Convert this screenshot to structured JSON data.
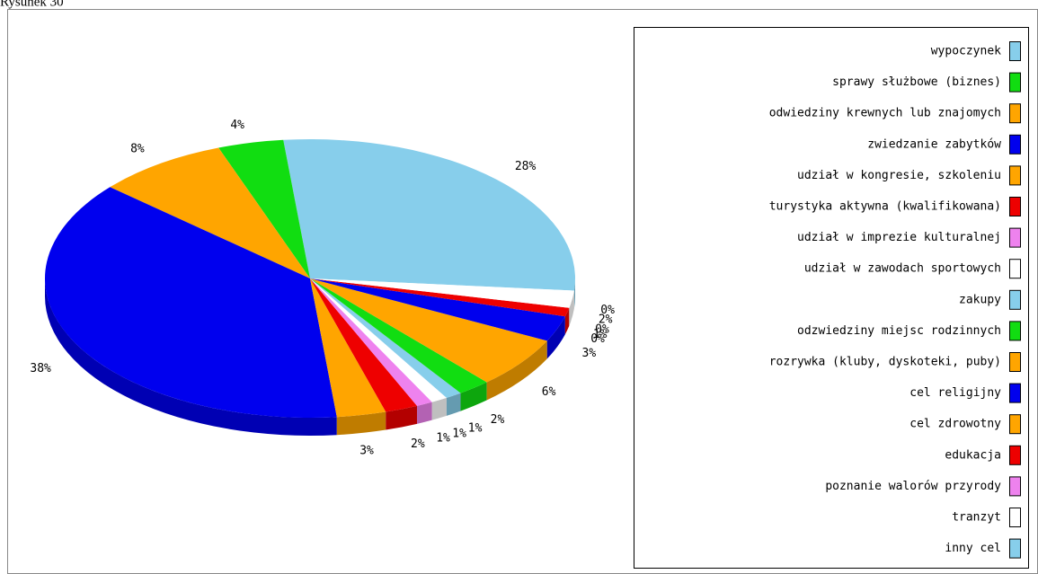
{
  "chart_data": {
    "type": "pie3d",
    "title": "Rysunek 30",
    "categories": [
      "wypoczynek",
      "sprawy służbowe (biznes)",
      "odwiedziny krewnych lub znajomych",
      "zwiedzanie zabytków",
      "udział w kongresie, szkoleniu",
      "turystyka aktywna (kwalifikowana)",
      "udział w imprezie kulturalnej",
      "udział w zawodach sportowych",
      "zakupy",
      "odzwiedziny miejsc rodzinnych",
      "rozrywka (kluby, dyskoteki, puby)",
      "cel religijny",
      "cel zdrowotny",
      "edukacja",
      "poznanie walorów przyrody",
      "tranzyt",
      "inny cel"
    ],
    "values": [
      28,
      4,
      8,
      38,
      3,
      2,
      1,
      1,
      1,
      2,
      6,
      3,
      0,
      1,
      0,
      2,
      0
    ],
    "value_labels": [
      "28%",
      "4%",
      "8%",
      "38%",
      "3%",
      "2%",
      "1%",
      "1%",
      "1%",
      "2%",
      "6%",
      "3%",
      "0%",
      "1%",
      "0%",
      "2%",
      "0%"
    ],
    "colors": [
      "#87ceeb",
      "#11dd11",
      "#ffa500",
      "#0000ee",
      "#ffa500",
      "#ee0000",
      "#ee82ee",
      "#ffffff",
      "#87ceeb",
      "#11dd11",
      "#ffa500",
      "#0000ee",
      "#ffa500",
      "#ee0000",
      "#ee82ee",
      "#ffffff",
      "#87ceeb"
    ],
    "legend": "right"
  }
}
